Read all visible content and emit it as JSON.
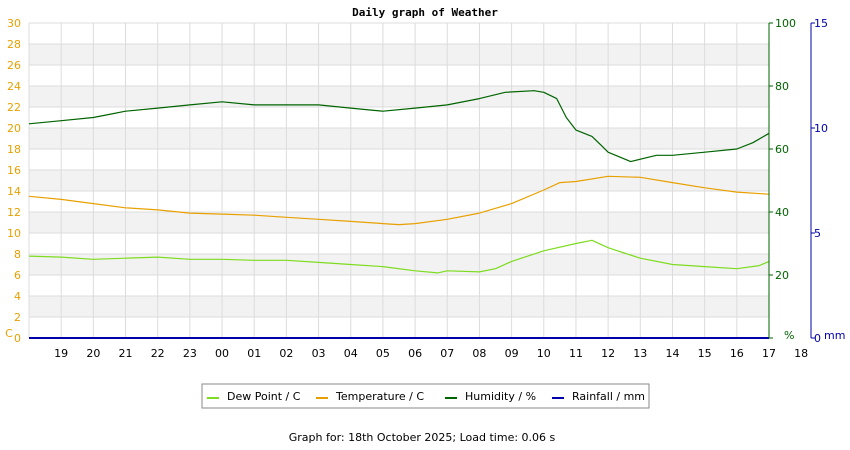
{
  "chart_data": {
    "type": "line",
    "title": "Daily graph of Weather",
    "x_categories": [
      "19",
      "20",
      "21",
      "22",
      "23",
      "00",
      "01",
      "02",
      "03",
      "04",
      "05",
      "06",
      "07",
      "08",
      "09",
      "10",
      "11",
      "12",
      "13",
      "14",
      "15",
      "16",
      "17",
      "18"
    ],
    "x_range": [
      18.0,
      41.0
    ],
    "axes": {
      "left": {
        "unit_label": "C",
        "range": [
          0,
          30
        ],
        "ticks": [
          0,
          2,
          4,
          6,
          8,
          10,
          12,
          14,
          16,
          18,
          20,
          22,
          24,
          26,
          28,
          30
        ],
        "color": "#e8a000"
      },
      "right1": {
        "unit_label": "%",
        "range": [
          0,
          100
        ],
        "ticks": [
          0,
          20,
          40,
          60,
          80,
          100
        ],
        "color": "#006400"
      },
      "right2": {
        "unit_label": "mm",
        "range": [
          0,
          15
        ],
        "ticks": [
          0,
          5,
          10,
          15
        ],
        "color": "#0000aa"
      }
    },
    "grid": true,
    "legend_position": "bottom-center",
    "series": [
      {
        "name": "Dew Point / C",
        "axis": "left",
        "color": "#7ddc1f",
        "points": [
          [
            18,
            7.8
          ],
          [
            19,
            7.7
          ],
          [
            20,
            7.5
          ],
          [
            21,
            7.6
          ],
          [
            22,
            7.7
          ],
          [
            23,
            7.5
          ],
          [
            24,
            7.5
          ],
          [
            25,
            7.4
          ],
          [
            26,
            7.4
          ],
          [
            27,
            7.2
          ],
          [
            28,
            7.0
          ],
          [
            29,
            6.8
          ],
          [
            30,
            6.4
          ],
          [
            30.7,
            6.2
          ],
          [
            31,
            6.4
          ],
          [
            32,
            6.3
          ],
          [
            32.5,
            6.6
          ],
          [
            33,
            7.3
          ],
          [
            34,
            8.3
          ],
          [
            35,
            9.0
          ],
          [
            35.5,
            9.3
          ],
          [
            36,
            8.6
          ],
          [
            36.5,
            8.1
          ],
          [
            37,
            7.6
          ],
          [
            38,
            7.0
          ],
          [
            39,
            6.8
          ],
          [
            40,
            6.6
          ],
          [
            40.7,
            6.9
          ],
          [
            41,
            7.3
          ]
        ]
      },
      {
        "name": "Temperature / C",
        "axis": "left",
        "color": "#e8a000",
        "points": [
          [
            18,
            13.5
          ],
          [
            19,
            13.2
          ],
          [
            20,
            12.8
          ],
          [
            21,
            12.4
          ],
          [
            22,
            12.2
          ],
          [
            23,
            11.9
          ],
          [
            24,
            11.8
          ],
          [
            25,
            11.7
          ],
          [
            26,
            11.5
          ],
          [
            27,
            11.3
          ],
          [
            28,
            11.1
          ],
          [
            29,
            10.9
          ],
          [
            29.5,
            10.8
          ],
          [
            30,
            10.9
          ],
          [
            31,
            11.3
          ],
          [
            32,
            11.9
          ],
          [
            33,
            12.8
          ],
          [
            34,
            14.1
          ],
          [
            34.5,
            14.8
          ],
          [
            35,
            14.9
          ],
          [
            36,
            15.4
          ],
          [
            37,
            15.3
          ],
          [
            38,
            14.8
          ],
          [
            39,
            14.3
          ],
          [
            40,
            13.9
          ],
          [
            41,
            13.7
          ]
        ]
      },
      {
        "name": "Humidity / %",
        "axis": "right1",
        "color": "#006400",
        "points": [
          [
            18,
            68
          ],
          [
            19,
            69
          ],
          [
            20,
            70
          ],
          [
            20.5,
            71
          ],
          [
            21,
            72
          ],
          [
            22,
            73
          ],
          [
            23,
            74
          ],
          [
            24,
            75
          ],
          [
            25,
            74
          ],
          [
            26,
            74
          ],
          [
            27,
            74
          ],
          [
            28,
            73
          ],
          [
            29,
            72
          ],
          [
            30,
            73
          ],
          [
            31,
            74
          ],
          [
            32,
            76
          ],
          [
            32.8,
            78
          ],
          [
            33.7,
            78.5
          ],
          [
            34,
            78
          ],
          [
            34.4,
            76
          ],
          [
            34.7,
            70
          ],
          [
            35,
            66
          ],
          [
            35.5,
            64
          ],
          [
            35.8,
            61
          ],
          [
            36,
            59
          ],
          [
            36.7,
            56
          ],
          [
            37.5,
            58
          ],
          [
            38,
            58
          ],
          [
            39,
            59
          ],
          [
            40,
            60
          ],
          [
            40.5,
            62
          ],
          [
            41,
            65
          ]
        ]
      },
      {
        "name": "Rainfall / mm",
        "axis": "right2",
        "color": "#0000aa",
        "points": [
          [
            18,
            0
          ],
          [
            41,
            0
          ]
        ]
      }
    ]
  },
  "footer": {
    "text": "Graph for: 18th October 2025; Load time: 0.06 s"
  }
}
